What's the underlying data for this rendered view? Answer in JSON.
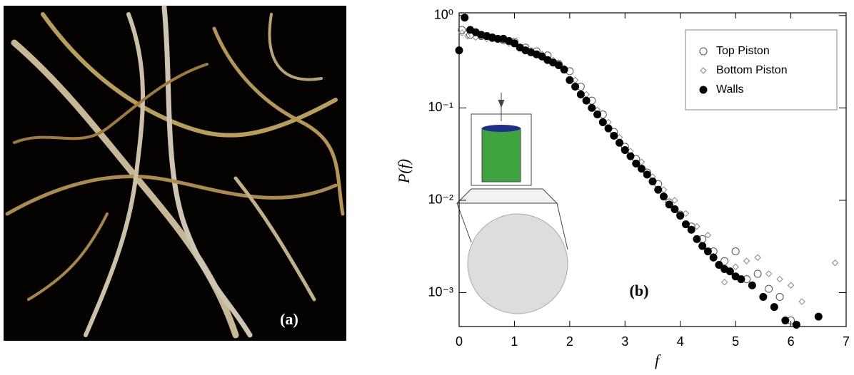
{
  "panel_a_label": "(a)",
  "chart_data": {
    "type": "scatter",
    "annotation": "(b)",
    "x_label": "f",
    "y_label": "P(f)",
    "log_y": true,
    "legend": "upper right",
    "xlim": [
      0,
      7
    ],
    "xticks": [
      0,
      1,
      2,
      3,
      4,
      5,
      6,
      7
    ],
    "ylim": [
      0.00043,
      1.07
    ],
    "yticks": [
      {
        "value": 0.001,
        "label": "10⁻³"
      },
      {
        "value": 0.01,
        "label": "10⁻²"
      },
      {
        "value": 0.1,
        "label": "10⁻¹"
      },
      {
        "value": 1,
        "label": "10⁰"
      }
    ],
    "series": [
      {
        "name": "Top Piston",
        "color": "#555555",
        "marker": "circle-open",
        "x": [
          0.05,
          0.2,
          0.4,
          0.6,
          0.8,
          1.0,
          1.2,
          1.4,
          1.6,
          1.8,
          2.0,
          2.2,
          2.4,
          2.6,
          2.8,
          3.0,
          3.2,
          3.4,
          3.6,
          3.8,
          4.0,
          4.2,
          4.4,
          4.6,
          4.8,
          5.0,
          5.2,
          5.4,
          5.6,
          5.8,
          6.0
        ],
        "values": [
          0.7,
          0.62,
          0.6,
          0.57,
          0.54,
          0.52,
          0.45,
          0.41,
          0.37,
          0.3,
          0.25,
          0.17,
          0.12,
          0.085,
          0.055,
          0.038,
          0.028,
          0.02,
          0.015,
          0.0095,
          0.007,
          0.0052,
          0.0038,
          0.0028,
          0.0022,
          0.0028,
          0.0014,
          0.0016,
          0.0011,
          0.0009,
          0.0005
        ]
      },
      {
        "name": "Bottom Piston",
        "color": "#888888",
        "marker": "diamond-open",
        "x": [
          0.05,
          0.15,
          0.3,
          0.5,
          0.7,
          0.9,
          1.1,
          1.3,
          1.5,
          1.7,
          1.9,
          2.1,
          2.3,
          2.5,
          2.7,
          2.9,
          3.1,
          3.3,
          3.5,
          3.7,
          3.9,
          4.1,
          4.3,
          4.5,
          4.6,
          4.8,
          5.0,
          5.2,
          5.4,
          5.6,
          5.8,
          6.0,
          6.2,
          6.8
        ],
        "values": [
          0.65,
          0.6,
          0.58,
          0.56,
          0.55,
          0.5,
          0.46,
          0.42,
          0.38,
          0.33,
          0.27,
          0.2,
          0.14,
          0.095,
          0.07,
          0.048,
          0.034,
          0.026,
          0.018,
          0.013,
          0.01,
          0.0072,
          0.0052,
          0.0042,
          0.0025,
          0.0013,
          0.0019,
          0.0022,
          0.0024,
          0.0016,
          0.0014,
          0.0012,
          0.0008,
          0.0021
        ]
      },
      {
        "name": "Walls",
        "color": "#000000",
        "marker": "circle-filled",
        "x": [
          0.0,
          0.1,
          0.2,
          0.3,
          0.4,
          0.5,
          0.6,
          0.7,
          0.8,
          0.9,
          1.0,
          1.1,
          1.2,
          1.3,
          1.4,
          1.5,
          1.6,
          1.7,
          1.8,
          1.9,
          2.0,
          2.1,
          2.2,
          2.3,
          2.4,
          2.5,
          2.6,
          2.7,
          2.8,
          2.9,
          3.0,
          3.1,
          3.2,
          3.3,
          3.4,
          3.5,
          3.6,
          3.7,
          3.8,
          3.9,
          4.0,
          4.1,
          4.2,
          4.3,
          4.4,
          4.5,
          4.6,
          4.7,
          4.8,
          4.9,
          5.0,
          5.1,
          5.3,
          5.5,
          5.7,
          5.9,
          6.1,
          6.5
        ],
        "values": [
          0.42,
          0.95,
          0.7,
          0.66,
          0.62,
          0.6,
          0.58,
          0.56,
          0.56,
          0.53,
          0.5,
          0.45,
          0.42,
          0.4,
          0.38,
          0.36,
          0.33,
          0.31,
          0.29,
          0.26,
          0.2,
          0.17,
          0.14,
          0.12,
          0.1,
          0.085,
          0.07,
          0.06,
          0.05,
          0.042,
          0.035,
          0.03,
          0.025,
          0.022,
          0.019,
          0.016,
          0.013,
          0.011,
          0.009,
          0.008,
          0.0068,
          0.0055,
          0.0048,
          0.0038,
          0.0032,
          0.0028,
          0.0024,
          0.002,
          0.0018,
          0.0017,
          0.0015,
          0.0014,
          0.0012,
          0.0009,
          0.0007,
          0.0005,
          0.00045,
          0.00055
        ]
      }
    ]
  }
}
